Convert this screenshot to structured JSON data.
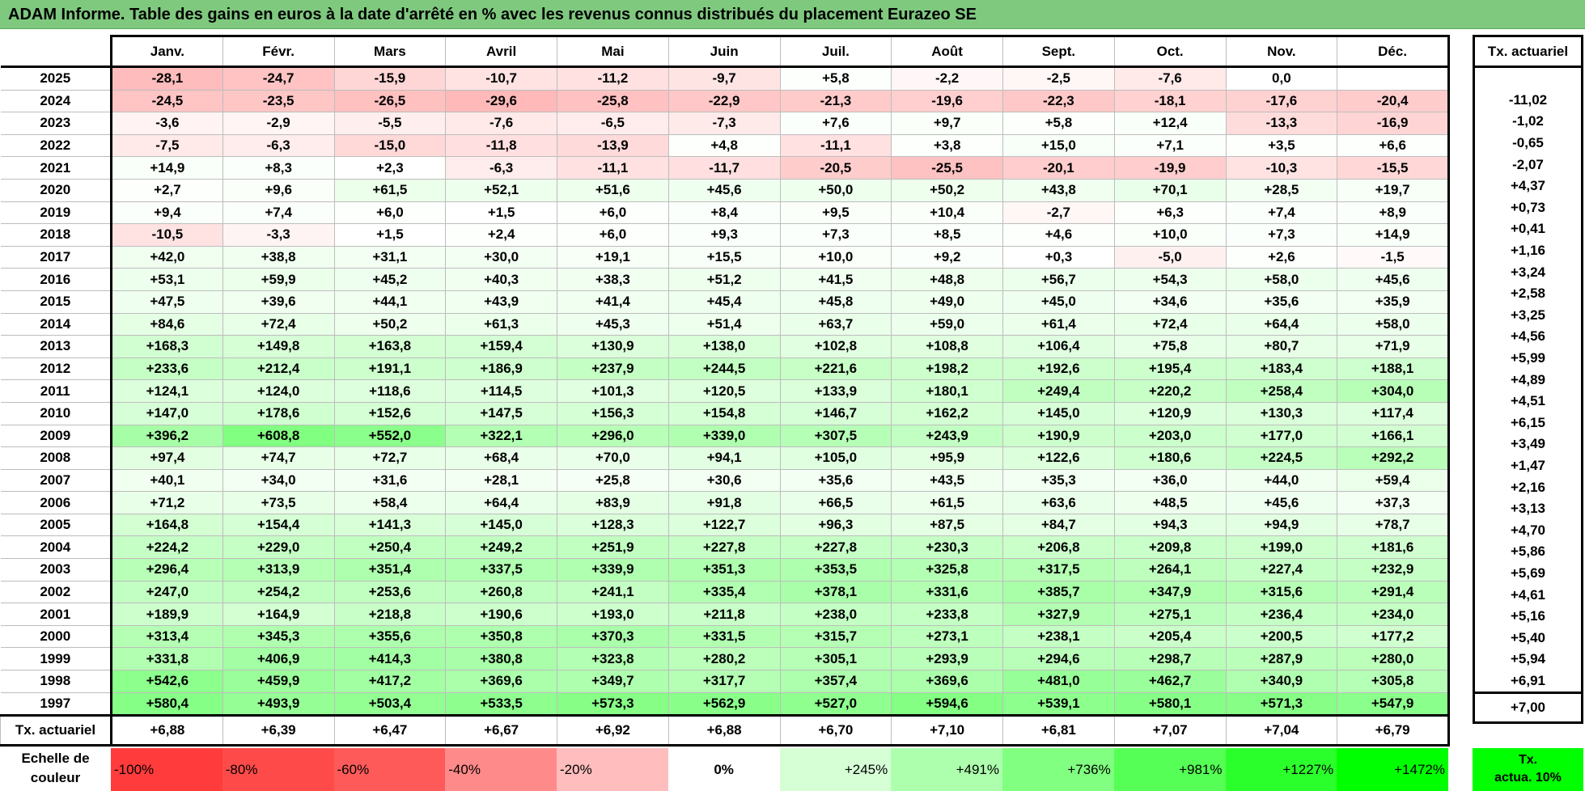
{
  "title": "ADAM Informe. Table des gains en euros à la date d'arrêté en % avec les revenus connus distribués du placement Eurazeo SE",
  "months": [
    "Janv.",
    "Févr.",
    "Mars",
    "Avril",
    "Mai",
    "Juin",
    "Juil.",
    "Août",
    "Sept.",
    "Oct.",
    "Nov.",
    "Déc."
  ],
  "rate_header": "Tx. actuariel",
  "rows": [
    {
      "year": "2025",
      "values": [
        "-28,1",
        "-24,7",
        "-15,9",
        "-10,7",
        "-11,2",
        "-9,7",
        "+5,8",
        "-2,2",
        "-2,5",
        "-7,6",
        "0,0",
        ""
      ],
      "rate": ""
    },
    {
      "year": "2024",
      "values": [
        "-24,5",
        "-23,5",
        "-26,5",
        "-29,6",
        "-25,8",
        "-22,9",
        "-21,3",
        "-19,6",
        "-22,3",
        "-18,1",
        "-17,6",
        "-20,4"
      ],
      "rate": "-11,02"
    },
    {
      "year": "2023",
      "values": [
        "-3,6",
        "-2,9",
        "-5,5",
        "-7,6",
        "-6,5",
        "-7,3",
        "+7,6",
        "+9,7",
        "+5,8",
        "+12,4",
        "-13,3",
        "-16,9"
      ],
      "rate": "-1,02"
    },
    {
      "year": "2022",
      "values": [
        "-7,5",
        "-6,3",
        "-15,0",
        "-11,8",
        "-13,9",
        "+4,8",
        "-11,1",
        "+3,8",
        "+15,0",
        "+7,1",
        "+3,5",
        "+6,6"
      ],
      "rate": "-0,65"
    },
    {
      "year": "2021",
      "values": [
        "+14,9",
        "+8,3",
        "+2,3",
        "-6,3",
        "-11,1",
        "-11,7",
        "-20,5",
        "-25,5",
        "-20,1",
        "-19,9",
        "-10,3",
        "-15,5"
      ],
      "rate": "-2,07"
    },
    {
      "year": "2020",
      "values": [
        "+2,7",
        "+9,6",
        "+61,5",
        "+52,1",
        "+51,6",
        "+45,6",
        "+50,0",
        "+50,2",
        "+43,8",
        "+70,1",
        "+28,5",
        "+19,7"
      ],
      "rate": "+4,37"
    },
    {
      "year": "2019",
      "values": [
        "+9,4",
        "+7,4",
        "+6,0",
        "+1,5",
        "+6,0",
        "+8,4",
        "+9,5",
        "+10,4",
        "-2,7",
        "+6,3",
        "+7,4",
        "+8,9"
      ],
      "rate": "+0,73"
    },
    {
      "year": "2018",
      "values": [
        "-10,5",
        "-3,3",
        "+1,5",
        "+2,4",
        "+6,0",
        "+9,3",
        "+7,3",
        "+8,5",
        "+4,6",
        "+10,0",
        "+7,3",
        "+14,9"
      ],
      "rate": "+0,41"
    },
    {
      "year": "2017",
      "values": [
        "+42,0",
        "+38,8",
        "+31,1",
        "+30,0",
        "+19,1",
        "+15,5",
        "+10,0",
        "+9,2",
        "+0,3",
        "-5,0",
        "+2,6",
        "-1,5"
      ],
      "rate": "+1,16"
    },
    {
      "year": "2016",
      "values": [
        "+53,1",
        "+59,9",
        "+45,2",
        "+40,3",
        "+38,3",
        "+51,2",
        "+41,5",
        "+48,8",
        "+56,7",
        "+54,3",
        "+58,0",
        "+45,6"
      ],
      "rate": "+3,24"
    },
    {
      "year": "2015",
      "values": [
        "+47,5",
        "+39,6",
        "+44,1",
        "+43,9",
        "+41,4",
        "+45,4",
        "+45,8",
        "+49,0",
        "+45,0",
        "+34,6",
        "+35,6",
        "+35,9"
      ],
      "rate": "+2,58"
    },
    {
      "year": "2014",
      "values": [
        "+84,6",
        "+72,4",
        "+50,2",
        "+61,3",
        "+45,3",
        "+51,4",
        "+63,7",
        "+59,0",
        "+61,4",
        "+72,4",
        "+64,4",
        "+58,0"
      ],
      "rate": "+3,25"
    },
    {
      "year": "2013",
      "values": [
        "+168,3",
        "+149,8",
        "+163,8",
        "+159,4",
        "+130,9",
        "+138,0",
        "+102,8",
        "+108,8",
        "+106,4",
        "+75,8",
        "+80,7",
        "+71,9"
      ],
      "rate": "+4,56"
    },
    {
      "year": "2012",
      "values": [
        "+233,6",
        "+212,4",
        "+191,1",
        "+186,9",
        "+237,9",
        "+244,5",
        "+221,6",
        "+198,2",
        "+192,6",
        "+195,4",
        "+183,4",
        "+188,1"
      ],
      "rate": "+5,99"
    },
    {
      "year": "2011",
      "values": [
        "+124,1",
        "+124,0",
        "+118,6",
        "+114,5",
        "+101,3",
        "+120,5",
        "+133,9",
        "+180,1",
        "+249,4",
        "+220,2",
        "+258,4",
        "+304,0"
      ],
      "rate": "+4,89"
    },
    {
      "year": "2010",
      "values": [
        "+147,0",
        "+178,6",
        "+152,6",
        "+147,5",
        "+156,3",
        "+154,8",
        "+146,7",
        "+162,2",
        "+145,0",
        "+120,9",
        "+130,3",
        "+117,4"
      ],
      "rate": "+4,51"
    },
    {
      "year": "2009",
      "values": [
        "+396,2",
        "+608,8",
        "+552,0",
        "+322,1",
        "+296,0",
        "+339,0",
        "+307,5",
        "+243,9",
        "+190,9",
        "+203,0",
        "+177,0",
        "+166,1"
      ],
      "rate": "+6,15"
    },
    {
      "year": "2008",
      "values": [
        "+97,4",
        "+74,7",
        "+72,7",
        "+68,4",
        "+70,0",
        "+94,1",
        "+105,0",
        "+95,9",
        "+122,6",
        "+180,6",
        "+224,5",
        "+292,2"
      ],
      "rate": "+3,49"
    },
    {
      "year": "2007",
      "values": [
        "+40,1",
        "+34,0",
        "+31,6",
        "+28,1",
        "+25,8",
        "+30,6",
        "+35,6",
        "+43,5",
        "+35,3",
        "+36,0",
        "+44,0",
        "+59,4"
      ],
      "rate": "+1,47"
    },
    {
      "year": "2006",
      "values": [
        "+71,2",
        "+73,5",
        "+58,4",
        "+64,4",
        "+83,9",
        "+91,8",
        "+66,5",
        "+61,5",
        "+63,6",
        "+48,5",
        "+45,6",
        "+37,3"
      ],
      "rate": "+2,16"
    },
    {
      "year": "2005",
      "values": [
        "+164,8",
        "+154,4",
        "+141,3",
        "+145,0",
        "+128,3",
        "+122,7",
        "+96,3",
        "+87,5",
        "+84,7",
        "+94,3",
        "+94,9",
        "+78,7"
      ],
      "rate": "+3,13"
    },
    {
      "year": "2004",
      "values": [
        "+224,2",
        "+229,0",
        "+250,4",
        "+249,2",
        "+251,9",
        "+227,8",
        "+227,8",
        "+230,3",
        "+206,8",
        "+209,8",
        "+199,0",
        "+181,6"
      ],
      "rate": "+4,70"
    },
    {
      "year": "2003",
      "values": [
        "+296,4",
        "+313,9",
        "+351,4",
        "+337,5",
        "+339,9",
        "+351,3",
        "+353,5",
        "+325,8",
        "+317,5",
        "+264,1",
        "+227,4",
        "+232,9"
      ],
      "rate": "+5,86"
    },
    {
      "year": "2002",
      "values": [
        "+247,0",
        "+254,2",
        "+253,6",
        "+260,8",
        "+241,1",
        "+335,4",
        "+378,1",
        "+331,6",
        "+385,7",
        "+347,9",
        "+315,6",
        "+291,4"
      ],
      "rate": "+5,69"
    },
    {
      "year": "2001",
      "values": [
        "+189,9",
        "+164,9",
        "+218,8",
        "+190,6",
        "+193,0",
        "+211,8",
        "+238,0",
        "+233,8",
        "+327,9",
        "+275,1",
        "+236,4",
        "+234,0"
      ],
      "rate": "+4,61"
    },
    {
      "year": "2000",
      "values": [
        "+313,4",
        "+345,3",
        "+355,6",
        "+350,8",
        "+370,3",
        "+331,5",
        "+315,7",
        "+273,1",
        "+238,1",
        "+205,4",
        "+200,5",
        "+177,2"
      ],
      "rate": "+5,16"
    },
    {
      "year": "1999",
      "values": [
        "+331,8",
        "+406,9",
        "+414,3",
        "+380,8",
        "+323,8",
        "+280,2",
        "+305,1",
        "+293,9",
        "+294,6",
        "+298,7",
        "+287,9",
        "+280,0"
      ],
      "rate": "+5,40"
    },
    {
      "year": "1998",
      "values": [
        "+542,6",
        "+459,9",
        "+417,2",
        "+369,6",
        "+349,7",
        "+317,7",
        "+357,4",
        "+369,6",
        "+481,0",
        "+462,7",
        "+340,9",
        "+305,8"
      ],
      "rate": "+5,94"
    },
    {
      "year": "1997",
      "values": [
        "+580,4",
        "+493,9",
        "+503,4",
        "+533,5",
        "+573,3",
        "+562,9",
        "+527,0",
        "+594,6",
        "+539,1",
        "+580,1",
        "+571,3",
        "+547,9"
      ],
      "rate": "+6,91"
    }
  ],
  "footer": {
    "label": "Tx. actuariel",
    "values": [
      "+6,88",
      "+6,39",
      "+6,47",
      "+6,67",
      "+6,92",
      "+6,88",
      "+6,70",
      "+7,10",
      "+6,81",
      "+7,07",
      "+7,04",
      "+6,79"
    ],
    "rate": "+7,00"
  },
  "legend": {
    "label_line1": "Echelle de",
    "label_line2": "couleur",
    "cells": [
      {
        "label": "-100%",
        "color": "#ff3b3b",
        "align": "left"
      },
      {
        "label": "-80%",
        "color": "#ff4a4a",
        "align": "left"
      },
      {
        "label": "-60%",
        "color": "#ff5a5a",
        "align": "left"
      },
      {
        "label": "-40%",
        "color": "#ff8a8a",
        "align": "left"
      },
      {
        "label": "-20%",
        "color": "#ffbdbd",
        "align": "left"
      },
      {
        "label": "0%",
        "color": "#ffffff",
        "align": "center"
      },
      {
        "label": "+245%",
        "color": "#d6ffd6",
        "align": "right"
      },
      {
        "label": "+491%",
        "color": "#adffad",
        "align": "right"
      },
      {
        "label": "+736%",
        "color": "#80ff80",
        "align": "right"
      },
      {
        "label": "+981%",
        "color": "#55ff55",
        "align": "right"
      },
      {
        "label": "+1227%",
        "color": "#2bff2b",
        "align": "right"
      },
      {
        "label": "+1472%",
        "color": "#00ff00",
        "align": "right"
      }
    ],
    "rate_line1": "Tx.",
    "rate_line2": "actua. 10%",
    "rate_color": "#00ff00"
  },
  "colors": {
    "title_bg": "#7fc97f",
    "neg_max": "#ff3b3b",
    "pos_max": "#00ff00"
  }
}
